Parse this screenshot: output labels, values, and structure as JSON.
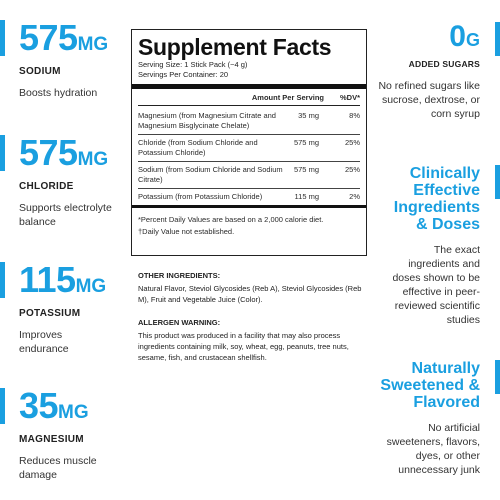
{
  "colors": {
    "accent": "#1a9fe0",
    "text": "#2b2b2b"
  },
  "left_stats": [
    {
      "value": "575",
      "unit": "MG",
      "name": "SODIUM",
      "desc": "Boosts hydration"
    },
    {
      "value": "575",
      "unit": "MG",
      "name": "CHLORIDE",
      "desc": "Supports electrolyte balance"
    },
    {
      "value": "115",
      "unit": "MG",
      "name": "POTASSIUM",
      "desc": "Improves endurance"
    },
    {
      "value": "35",
      "unit": "MG",
      "name": "MAGNESIUM",
      "desc": "Reduces muscle damage"
    }
  ],
  "facts": {
    "title": "Supplement Facts",
    "serving_size": "Serving Size: 1 Stick Pack (~4 g)",
    "servings": "Servings Per Container: 20",
    "col_amount": "Amount Per Serving",
    "col_dv": "%DV*",
    "rows": [
      {
        "name": "Magnesium (from Magnesium Citrate and Magnesium Bisglycinate Chelate)",
        "amount": "35 mg",
        "dv": "8%"
      },
      {
        "name": "Chloride (from Sodium Chloride and Potassium Chloride)",
        "amount": "575 mg",
        "dv": "25%"
      },
      {
        "name": "Sodium (from Sodium Chloride and Sodium Citrate)",
        "amount": "575 mg",
        "dv": "25%"
      },
      {
        "name": "Potassium (from Potassium Chloride)",
        "amount": "115 mg",
        "dv": "2%"
      }
    ],
    "footnote1": "*Percent Daily Values are based on a 2,000 calorie diet.",
    "footnote2": "†Daily Value not established."
  },
  "other": {
    "ingredients_label": "OTHER INGREDIENTS:",
    "ingredients_text": "Natural Flavor, Steviol Glycosides (Reb A), Steviol Glycosides (Reb M), Fruit and Vegetable Juice (Color).",
    "allergen_label": "ALLERGEN WARNING:",
    "allergen_text": "This product was produced in a facility that may also process ingredients containing milk, soy, wheat, egg, peanuts, tree nuts, sesame, fish, and crustacean shellfish."
  },
  "right": {
    "sugar_value": "0",
    "sugar_unit": "G",
    "sugar_name": "ADDED SUGARS",
    "sugar_desc": "No refined sugars like sucrose, dextrose, or corn syrup",
    "clinical_head": "Clinically Effective Ingredients & Doses",
    "clinical_desc": "The exact ingredients and doses shown to be effective in peer-reviewed scientific studies",
    "sweet_head": "Naturally Sweetened & Flavored",
    "sweet_desc": "No artificial sweeteners, flavors, dyes, or other unnecessary junk"
  }
}
